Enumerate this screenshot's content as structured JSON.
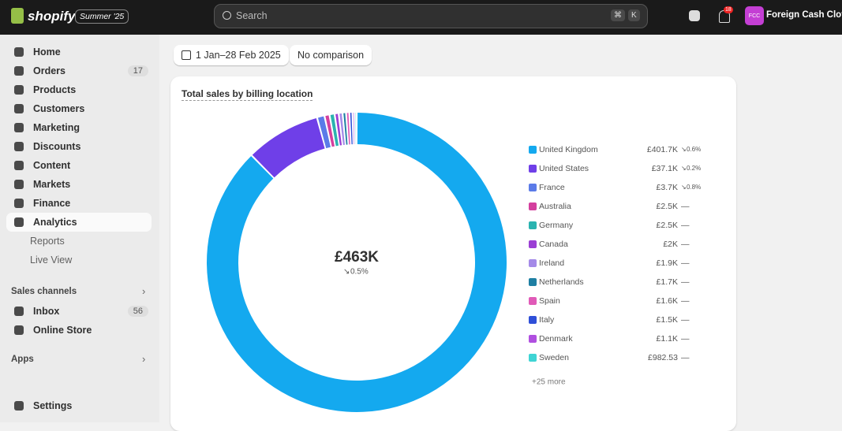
{
  "topbar": {
    "brand": "shopify",
    "badge": "Summer '25",
    "search": "Search",
    "keys": [
      "⌘",
      "K"
    ],
    "notifications": 18,
    "avatar": "FCC",
    "store": "Foreign Cash Clothi"
  },
  "sidebar": {
    "items": [
      {
        "label": "Home"
      },
      {
        "label": "Orders",
        "count": 17
      },
      {
        "label": "Products"
      },
      {
        "label": "Customers"
      },
      {
        "label": "Marketing"
      },
      {
        "label": "Discounts"
      },
      {
        "label": "Content"
      },
      {
        "label": "Markets"
      },
      {
        "label": "Finance"
      },
      {
        "label": "Analytics"
      }
    ],
    "subitems": [
      "Reports",
      "Live View"
    ],
    "sales_channels": {
      "label": "Sales channels",
      "items": [
        {
          "label": "Inbox",
          "count": 56
        },
        {
          "label": "Online Store"
        }
      ]
    },
    "apps": "Apps",
    "settings": "Settings"
  },
  "filters": [
    "1 Jan–28 Feb 2025",
    "No comparison"
  ],
  "card": {
    "title": "Total sales by billing location",
    "total": "£463K",
    "total_change": "0.5%",
    "more": "+25 more"
  },
  "chart_data": {
    "type": "donut",
    "categories": [
      "United Kingdom",
      "United States",
      "France",
      "Australia",
      "Germany",
      "Canada",
      "Ireland",
      "Netherlands",
      "Spain",
      "Italy",
      "Denmark",
      "Sweden"
    ],
    "values": [
      401700,
      37100,
      3700,
      2500,
      2500,
      2000,
      1900,
      1700,
      1600,
      1500,
      1100,
      982.53
    ],
    "value_labels": [
      "£401.7K",
      "£37.1K",
      "£3.7K",
      "£2.5K",
      "£2.5K",
      "£2K",
      "£1.9K",
      "£1.7K",
      "£1.6K",
      "£1.5K",
      "£1.1K",
      "£982.53"
    ],
    "changes": [
      "0.6%",
      "0.2%",
      "0.8%",
      "—",
      "—",
      "—",
      "—",
      "—",
      "—",
      "—",
      "—",
      "—"
    ],
    "colors": [
      "#14a9ef",
      "#6f3fe8",
      "#5b7be8",
      "#d43f9e",
      "#2ab3b0",
      "#9b3fd4",
      "#a48ae8",
      "#1e7fa3",
      "#e05ab8",
      "#2f4fd8",
      "#b04fe0",
      "#3fd4d4"
    ]
  }
}
